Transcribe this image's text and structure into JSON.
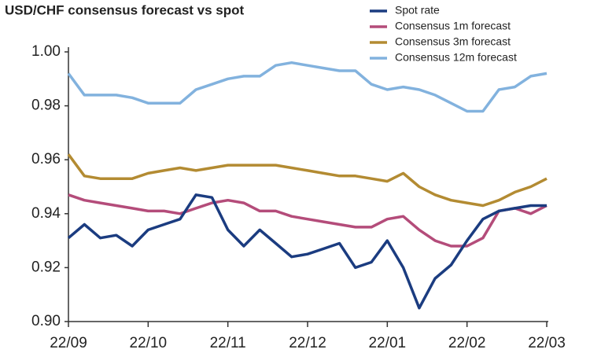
{
  "chart_data": {
    "type": "line",
    "title": "USD/CHF consensus forecast vs spot",
    "categories": [
      "22/09",
      null,
      null,
      null,
      null,
      "22/10",
      null,
      null,
      null,
      null,
      "22/11",
      null,
      null,
      null,
      null,
      "22/12",
      null,
      null,
      null,
      null,
      "22/01",
      null,
      null,
      null,
      null,
      "22/02",
      null,
      null,
      null,
      null,
      "22/03"
    ],
    "series": [
      {
        "name": "Spot rate",
        "color": "#1b3c80",
        "values": [
          0.931,
          0.936,
          0.931,
          0.932,
          0.928,
          0.934,
          0.936,
          0.938,
          0.947,
          0.946,
          0.934,
          0.928,
          0.934,
          0.929,
          0.924,
          0.925,
          0.927,
          0.929,
          0.92,
          0.922,
          0.93,
          0.92,
          0.905,
          0.916,
          0.921,
          0.93,
          0.938,
          0.941,
          0.942,
          0.943,
          0.943
        ]
      },
      {
        "name": "Consensus 1m forecast",
        "color": "#b44c7a",
        "values": [
          0.947,
          0.945,
          0.944,
          0.943,
          0.942,
          0.941,
          0.941,
          0.94,
          0.942,
          0.944,
          0.945,
          0.944,
          0.941,
          0.941,
          0.939,
          0.938,
          0.937,
          0.936,
          0.935,
          0.935,
          0.938,
          0.939,
          0.934,
          0.93,
          0.928,
          0.928,
          0.931,
          0.941,
          0.942,
          0.94,
          0.943
        ]
      },
      {
        "name": "Consensus 3m forecast",
        "color": "#b38b32",
        "values": [
          0.962,
          0.954,
          0.953,
          0.953,
          0.953,
          0.955,
          0.956,
          0.957,
          0.956,
          0.957,
          0.958,
          0.958,
          0.958,
          0.958,
          0.957,
          0.956,
          0.955,
          0.954,
          0.954,
          0.953,
          0.952,
          0.955,
          0.95,
          0.947,
          0.945,
          0.944,
          0.943,
          0.945,
          0.948,
          0.95,
          0.953
        ]
      },
      {
        "name": "Consensus 12m forecast",
        "color": "#82b2de",
        "values": [
          0.992,
          0.984,
          0.984,
          0.984,
          0.983,
          0.981,
          0.981,
          0.981,
          0.986,
          0.988,
          0.99,
          0.991,
          0.991,
          0.995,
          0.996,
          0.995,
          0.994,
          0.993,
          0.993,
          0.988,
          0.986,
          0.987,
          0.986,
          0.984,
          0.981,
          0.978,
          0.978,
          0.986,
          0.987,
          0.991,
          0.992
        ]
      }
    ],
    "ylim": [
      0.9,
      1.0
    ],
    "yticks": [
      {
        "value": 0.9,
        "label": "0.90"
      },
      0.92,
      0.94,
      0.96,
      0.98,
      {
        "value": 1.0,
        "label": "1.00"
      }
    ],
    "grid": false,
    "legend": "top-right"
  }
}
